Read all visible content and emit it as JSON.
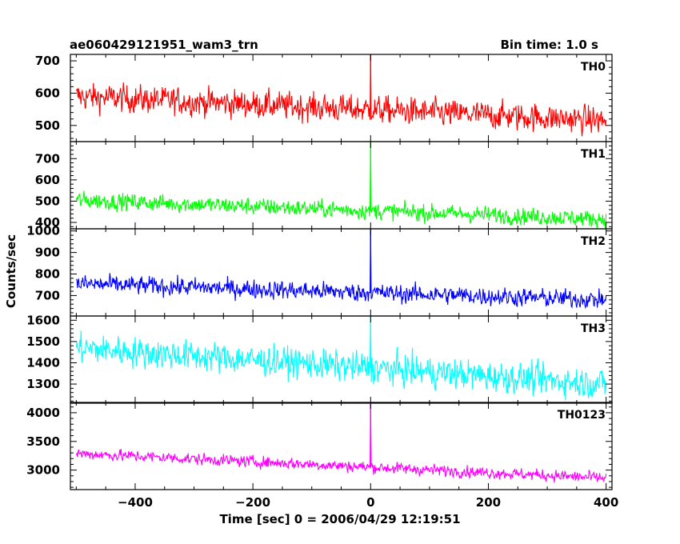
{
  "header": {
    "title": "ae060429121951_wam3_trn",
    "bin_time": "Bin time: 1.0 s"
  },
  "chart_data": {
    "type": "line",
    "xlabel": "Time [sec] 0 = 2006/04/29 12:19:51",
    "ylabel": "Counts/sec",
    "xlim": [
      -510,
      410
    ],
    "x_ticks": [
      -400,
      -200,
      0,
      200,
      400
    ],
    "x_tick_labels": [
      "−400",
      "−200",
      "0",
      "200",
      "400"
    ],
    "x_range": [
      -500,
      400
    ],
    "grid": false,
    "panels": [
      {
        "name": "TH0",
        "color": "#ff0000",
        "ylim": [
          450,
          720
        ],
        "yticks": [
          500,
          600,
          700
        ],
        "ytick_labels": [
          "500",
          "600",
          "700"
        ],
        "mean_start": 590,
        "mean_end": 515,
        "noise": 30,
        "spike": {
          "x": 0,
          "y": 720
        }
      },
      {
        "name": "TH1",
        "color": "#00ff00",
        "ylim": [
          370,
          780
        ],
        "yticks": [
          400,
          500,
          600,
          700
        ],
        "ytick_labels": [
          "400",
          "500",
          "600",
          "700"
        ],
        "mean_start": 505,
        "mean_end": 415,
        "noise": 28,
        "spike": {
          "x": 0,
          "y": 780
        }
      },
      {
        "name": "TH2",
        "color": "#0000ff",
        "ylim": [
          605,
          1010
        ],
        "yticks": [
          700,
          800,
          900,
          1000
        ],
        "ytick_labels": [
          "700",
          "800",
          "900",
          "1000"
        ],
        "mean_start": 755,
        "mean_end": 680,
        "noise": 30,
        "spike": {
          "x": 0,
          "y": 1000
        }
      },
      {
        "name": "TH3",
        "color": "#00ffff",
        "ylim": [
          1210,
          1620
        ],
        "yticks": [
          1300,
          1400,
          1500,
          1600
        ],
        "ytick_labels": [
          "1300",
          "1400",
          "1500",
          "1600"
        ],
        "mean_start": 1470,
        "mean_end": 1300,
        "noise": 50,
        "spike": {
          "x": 0,
          "y": 1600
        }
      },
      {
        "name": "TH0123",
        "color": "#ff00ff",
        "ylim": [
          2660,
          4180
        ],
        "yticks": [
          3000,
          3500,
          4000
        ],
        "ytick_labels": [
          "3000",
          "3500",
          "4000"
        ],
        "mean_start": 3290,
        "mean_end": 2860,
        "noise": 70,
        "spike": {
          "x": 0,
          "y": 4180
        }
      }
    ]
  }
}
